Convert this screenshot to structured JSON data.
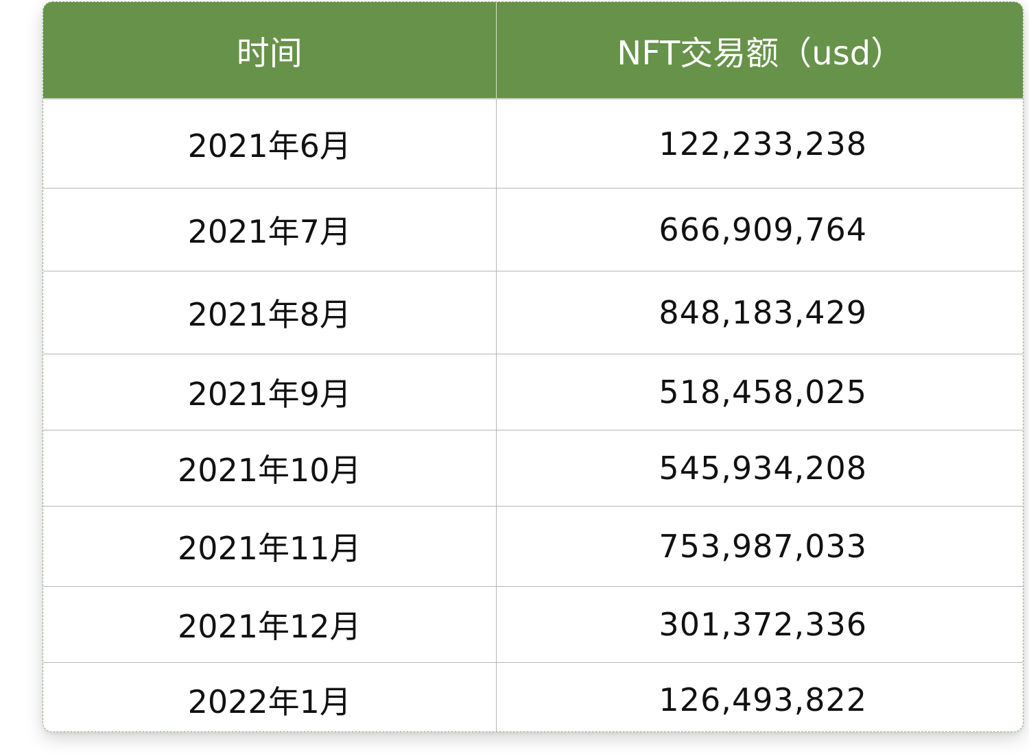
{
  "table": {
    "headers": [
      "时间",
      "NFT交易额（usd）"
    ],
    "rows": [
      [
        "2021年6月",
        "122,233,238"
      ],
      [
        "2021年7月",
        "666,909,764"
      ],
      [
        "2021年8月",
        "848,183,429"
      ],
      [
        "2021年9月",
        "518,458,025"
      ],
      [
        "2021年10月",
        "545,934,208"
      ],
      [
        "2021年11月",
        "753,987,033"
      ],
      [
        "2021年12月",
        "301,372,336"
      ],
      [
        "2022年1月",
        "126,493,822"
      ]
    ]
  },
  "colors": {
    "header_bg": "#679249",
    "header_text": "#ffffff",
    "cell_text": "#111111",
    "grid": "#b5b5b5"
  }
}
